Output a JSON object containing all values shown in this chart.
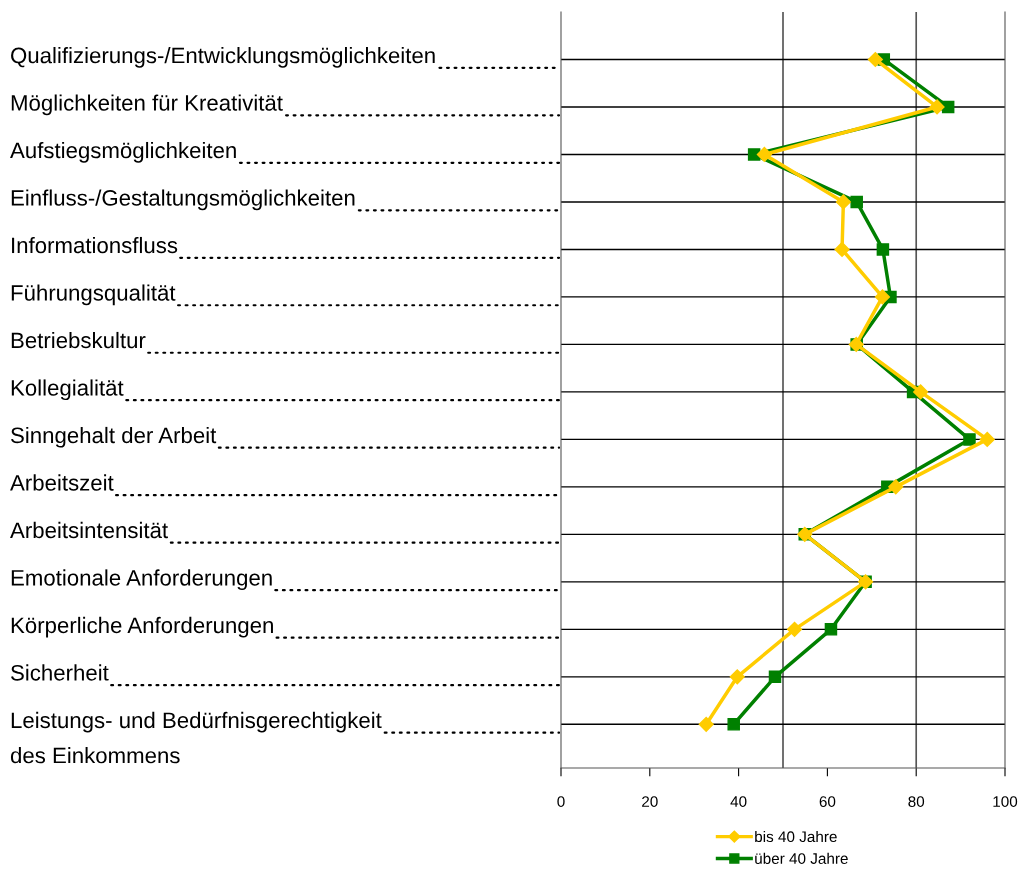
{
  "chart_data": {
    "type": "line",
    "orientation": "horizontal",
    "categories": [
      "Qualifizierungs-/Entwicklungsmöglichkeiten",
      "Möglichkeiten für Kreativität",
      "Aufstiegsmöglichkeiten",
      "Einfluss-/Gestaltungsmöglichkeiten",
      "Informationsfluss",
      "Führungsqualität",
      "Betriebskultur",
      "Kollegialität",
      "Sinngehalt der Arbeit",
      "Arbeitszeit",
      "Arbeitsintensität",
      "Emotionale Anforderungen",
      "Körperliche Anforderungen",
      "Sicherheit",
      "Leistungs- und Bedürfnisgerechtigkeit\ndes Einkommens"
    ],
    "series": [
      {
        "name": "bis 40 Jahre",
        "color": "#ffcc00",
        "marker": "diamond",
        "values": [
          70.8,
          84.7,
          45.8,
          63.6,
          63.3,
          72.4,
          66.5,
          81.0,
          96.0,
          75.4,
          54.9,
          68.6,
          52.6,
          39.7,
          32.7
        ]
      },
      {
        "name": "über 40 Jahre",
        "color": "#008000",
        "marker": "square",
        "values": [
          72.7,
          87.2,
          43.5,
          66.6,
          72.5,
          74.2,
          66.6,
          79.3,
          92.0,
          73.5,
          54.9,
          68.6,
          60.8,
          48.2,
          38.9
        ]
      }
    ],
    "xlim": [
      0,
      100
    ],
    "xticks": [
      0,
      20,
      40,
      60,
      80,
      100
    ],
    "ref_lines": [
      {
        "axis": "x",
        "value": 50
      },
      {
        "axis": "x",
        "value": 80
      }
    ],
    "grid": "y",
    "legend": "bottom",
    "line_style": "solid"
  }
}
